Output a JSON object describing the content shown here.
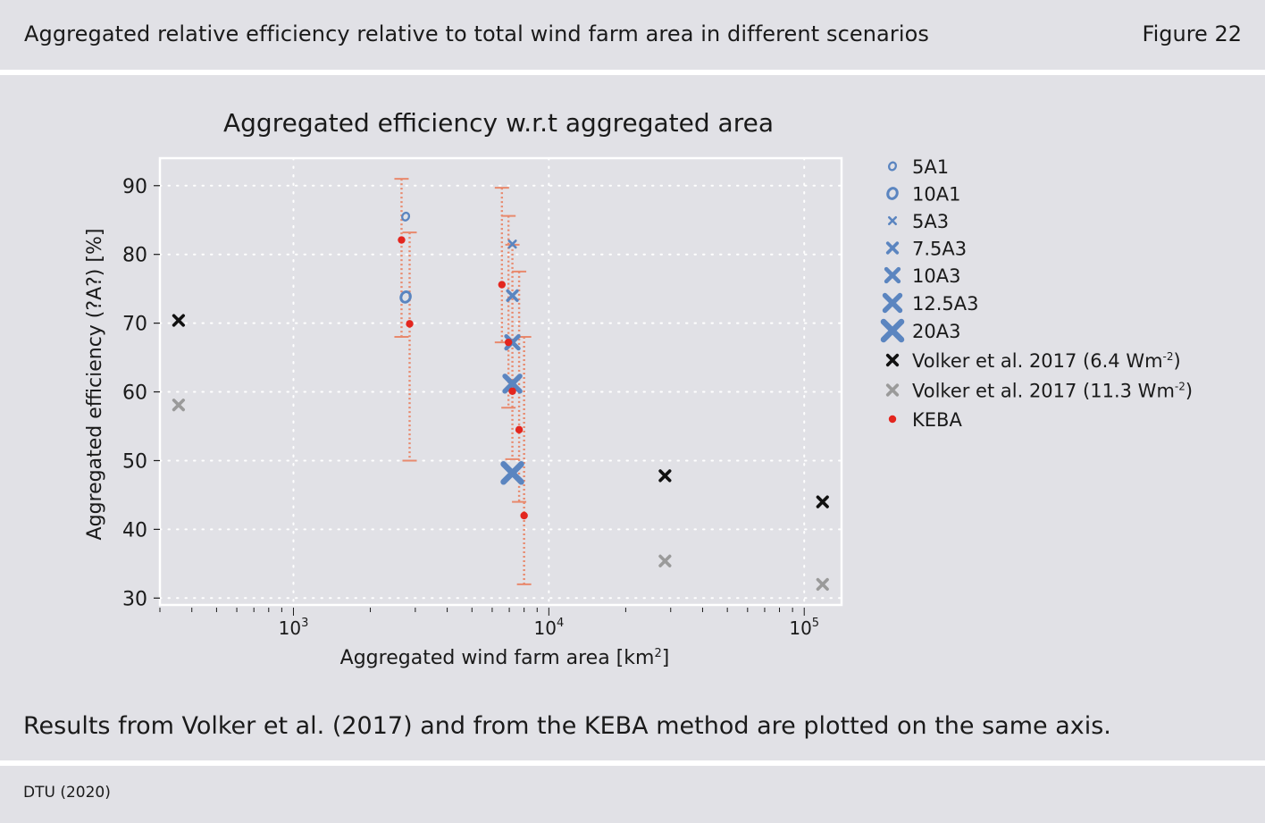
{
  "header": {
    "title": "Aggregated relative efficiency relative to total wind farm area in different scenarios",
    "figure_label": "Figure 22"
  },
  "caption": "Results from Volker et al. (2017) and from the KEBA method are plotted on the same axis.",
  "source": "DTU (2020)",
  "colors": {
    "background": "#e1e1e6",
    "blue_markers": "#5b85c0",
    "error_bars": "#e8896d",
    "keba": "#e3261f",
    "volker_low": "#111111",
    "volker_high": "#9a9a9a",
    "grid": "#ffffff"
  },
  "chart_data": {
    "type": "scatter",
    "title": "Aggregated efficiency w.r.t aggregated area",
    "xlabel": "Aggregated wind farm area [km²]",
    "ylabel": "Aggregated efficiency (?A?) [%]",
    "xscale": "log",
    "xlim": [
      300,
      140000
    ],
    "ylim": [
      29,
      94
    ],
    "x_ticks": [
      1000,
      10000,
      100000
    ],
    "x_tick_labels": [
      {
        "base": "10",
        "exp": "3"
      },
      {
        "base": "10",
        "exp": "4"
      },
      {
        "base": "10",
        "exp": "5"
      }
    ],
    "y_ticks": [
      30,
      40,
      50,
      60,
      70,
      80,
      90
    ],
    "grid": true,
    "legend_position": "right",
    "series": [
      {
        "name": "5A1",
        "marker": "ring",
        "size": 1,
        "color": "#5b85c0",
        "points": [
          [
            2750,
            85.5
          ]
        ]
      },
      {
        "name": "10A1",
        "marker": "ring",
        "size": 2,
        "color": "#5b85c0",
        "points": [
          [
            2750,
            73.8
          ]
        ]
      },
      {
        "name": "5A3",
        "marker": "cross",
        "size": 1,
        "color": "#5b85c0",
        "points": [
          [
            7200,
            81.5
          ]
        ]
      },
      {
        "name": "7.5A3",
        "marker": "cross",
        "size": 2,
        "color": "#5b85c0",
        "points": [
          [
            7200,
            74.0
          ]
        ]
      },
      {
        "name": "10A3",
        "marker": "cross",
        "size": 3,
        "color": "#5b85c0",
        "points": [
          [
            7200,
            67.2
          ]
        ]
      },
      {
        "name": "12.5A3",
        "marker": "cross",
        "size": 4,
        "color": "#5b85c0",
        "points": [
          [
            7200,
            61.2
          ]
        ]
      },
      {
        "name": "20A3",
        "marker": "cross",
        "size": 5,
        "color": "#5b85c0",
        "points": [
          [
            7200,
            48.2
          ]
        ]
      },
      {
        "name": "Volker et al. 2017 (6.4 Wm",
        "name_sup": "-2",
        "name_end": ")",
        "marker": "cross",
        "size": 2,
        "color": "#111111",
        "points": [
          [
            355,
            70.4
          ],
          [
            28500,
            47.8
          ],
          [
            118000,
            44.0
          ]
        ]
      },
      {
        "name": "Volker et al. 2017 (11.3 Wm",
        "name_sup": "-2",
        "name_end": ")",
        "marker": "cross",
        "size": 2,
        "color": "#9a9a9a",
        "points": [
          [
            355,
            58.1
          ],
          [
            28500,
            35.4
          ],
          [
            118000,
            32.0
          ]
        ]
      },
      {
        "name": "KEBA",
        "marker": "dot",
        "size": 2,
        "color": "#e3261f",
        "points": [
          [
            2650,
            82.1
          ],
          [
            2850,
            69.9
          ],
          [
            6550,
            75.6
          ],
          [
            6950,
            67.2
          ],
          [
            7200,
            60.1
          ],
          [
            7650,
            54.5
          ],
          [
            8000,
            42.0
          ]
        ]
      }
    ],
    "error_bars": [
      {
        "x": 2650,
        "low": 68.0,
        "high": 91.0
      },
      {
        "x": 2850,
        "low": 50.0,
        "high": 83.2
      },
      {
        "x": 6550,
        "low": 67.2,
        "high": 89.7
      },
      {
        "x": 6950,
        "low": 57.7,
        "high": 85.6
      },
      {
        "x": 7200,
        "low": 50.2,
        "high": 81.4
      },
      {
        "x": 7650,
        "low": 44.0,
        "high": 77.5
      },
      {
        "x": 8000,
        "low": 32.0,
        "high": 68.0
      }
    ]
  }
}
